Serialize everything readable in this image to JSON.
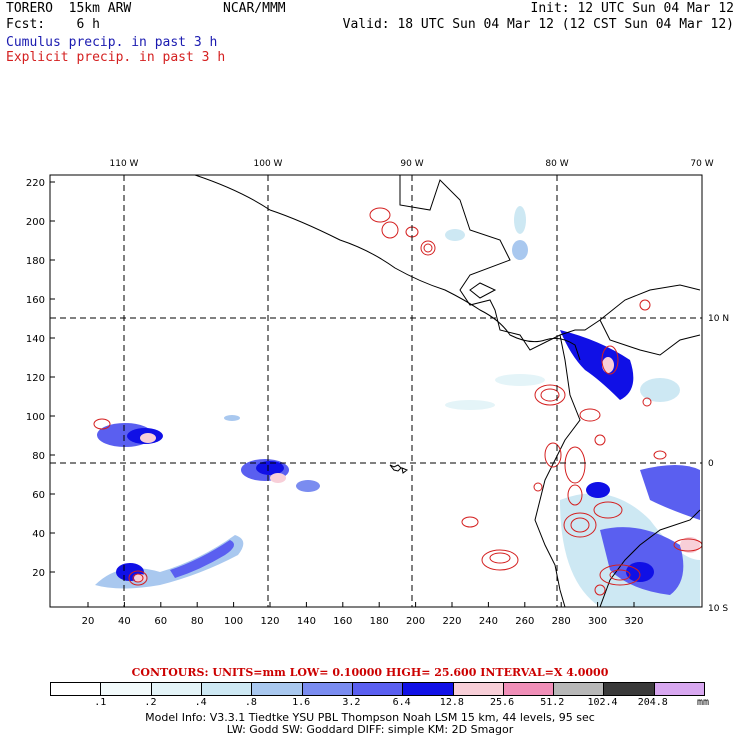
{
  "header": {
    "model": "TORERO  15km ARW",
    "center": "NCAR/MMM",
    "forecast": "Fcst:    6 h",
    "init": "Init: 12 UTC Sun 04 Mar 12",
    "valid": "Valid: 18 UTC Sun 04 Mar 12 (12 CST Sun 04 Mar 12)",
    "cumulus_label": "Cumulus precip. in past 3 h",
    "explicit_label": "Explicit precip. in past 3 h"
  },
  "map": {
    "lon_labels": [
      "110 W",
      "100 W",
      "90 W",
      "80 W",
      "70 W"
    ],
    "lat_labels": [
      "10 N",
      "0",
      "10 S"
    ],
    "x_ticks": [
      "20",
      "40",
      "60",
      "80",
      "100",
      "120",
      "140",
      "160",
      "180",
      "200",
      "220",
      "240",
      "260",
      "280",
      "300",
      "320"
    ],
    "y_ticks": [
      "20",
      "40",
      "60",
      "80",
      "100",
      "120",
      "140",
      "160",
      "180",
      "200",
      "220"
    ]
  },
  "contours_text": "CONTOURS:  UNITS=mm  LOW= 0.10000      HIGH=  25.600      INTERVAL=X  4.0000",
  "colorbar": {
    "colors": [
      "#ffffff",
      "#f2fafb",
      "#e4f4f8",
      "#cde8f3",
      "#a9c8ef",
      "#7a8cf0",
      "#5a5ff0",
      "#1010e6",
      "#f8cfd8",
      "#f08fb8",
      "#b8b8b8",
      "#3a3a3a",
      "#d8a8f0"
    ],
    "labels": [
      ".1",
      ".2",
      ".4",
      ".8",
      "1.6",
      "3.2",
      "6.4",
      "12.8",
      "25.6",
      "51.2",
      "102.4",
      "204.8"
    ],
    "unit": "mm"
  },
  "model_info": {
    "line1": "Model Info: V3.3.1    Tiedtke YSU PBL  Thompson     Noah LSM  15 km,    44 levels,    95 sec",
    "line2": "LW: Godd SW: Goddard DIFF: simple KM: 2D Smagor"
  }
}
